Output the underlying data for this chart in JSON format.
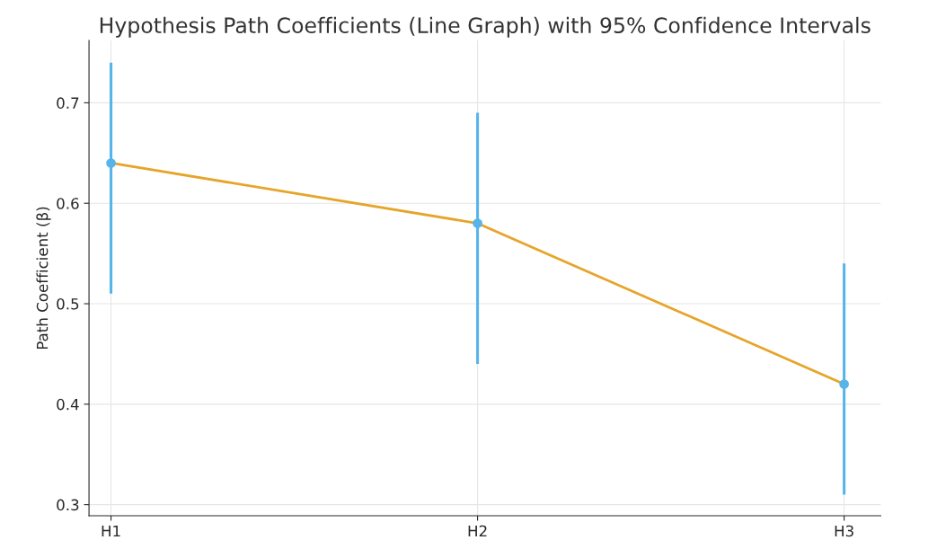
{
  "chart_data": {
    "type": "line",
    "title": "Hypothesis Path Coefficients (Line Graph) with 95% Confidence Intervals",
    "ylabel": "Path Coefficient (β)",
    "categories": [
      "H1",
      "H2",
      "H3"
    ],
    "series": [
      {
        "color": "#e6a52a",
        "values": [
          0.64,
          0.58,
          0.42
        ]
      },
      {
        "type": "scatter",
        "marker": "circle",
        "color": "#56b4e9",
        "values": [
          0.64,
          0.58,
          0.42
        ],
        "errors": [
          [
            0.51,
            0.74
          ],
          [
            0.44,
            0.69
          ],
          [
            0.31,
            0.54
          ]
        ]
      }
    ],
    "ylim": [
      0.289,
      0.762
    ],
    "yticks": [
      0.3,
      0.4,
      0.5,
      0.6,
      0.7
    ],
    "grid": true
  }
}
